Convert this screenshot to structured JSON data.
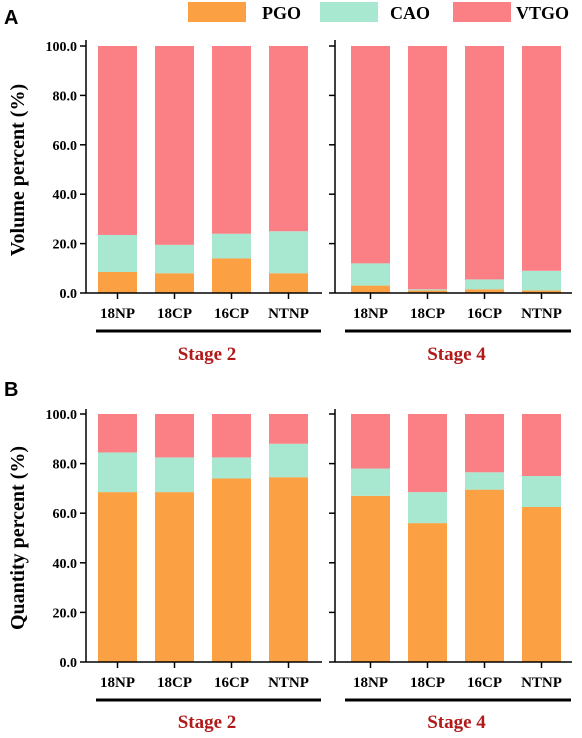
{
  "colors": {
    "pgo": "#FBA043",
    "cao": "#A8E8D1",
    "vtgo": "#FB8085",
    "stage_label": "#B01A1A",
    "axis": "#000000"
  },
  "legend": [
    {
      "key": "pgo",
      "label": "PGO"
    },
    {
      "key": "cao",
      "label": "CAO"
    },
    {
      "key": "vtgo",
      "label": "VTGO"
    }
  ],
  "chart_data": [
    {
      "panel": "A",
      "type": "bar",
      "stacked": true,
      "ylabel": "Volume percent (%)",
      "ylim": [
        0,
        100
      ],
      "yticks": [
        "0.0",
        "20.0",
        "40.0",
        "60.0",
        "80.0",
        "100.0"
      ],
      "groups": [
        {
          "label": "Stage 2",
          "categories": [
            "18NP",
            "18CP",
            "16CP",
            "NTNP"
          ],
          "series": [
            {
              "name": "PGO",
              "values": [
                8.5,
                8.0,
                14.0,
                8.0
              ]
            },
            {
              "name": "CAO",
              "values": [
                15.0,
                11.5,
                10.0,
                17.0
              ]
            },
            {
              "name": "VTGO",
              "values": [
                76.5,
                80.5,
                76.0,
                75.0
              ]
            }
          ]
        },
        {
          "label": "Stage 4",
          "categories": [
            "18NP",
            "18CP",
            "16CP",
            "NTNP"
          ],
          "series": [
            {
              "name": "PGO",
              "values": [
                3.0,
                1.0,
                1.5,
                1.0
              ]
            },
            {
              "name": "CAO",
              "values": [
                9.0,
                0.5,
                4.0,
                8.0
              ]
            },
            {
              "name": "VTGO",
              "values": [
                88.0,
                98.5,
                94.5,
                91.0
              ]
            }
          ]
        }
      ]
    },
    {
      "panel": "B",
      "type": "bar",
      "stacked": true,
      "ylabel": "Quantity percent (%)",
      "ylim": [
        0,
        100
      ],
      "yticks": [
        "0.0",
        "20.0",
        "40.0",
        "60.0",
        "80.0",
        "100.0"
      ],
      "groups": [
        {
          "label": "Stage 2",
          "categories": [
            "18NP",
            "18CP",
            "16CP",
            "NTNP"
          ],
          "series": [
            {
              "name": "PGO",
              "values": [
                68.5,
                68.5,
                74.0,
                74.5
              ]
            },
            {
              "name": "CAO",
              "values": [
                16.0,
                14.0,
                8.5,
                13.5
              ]
            },
            {
              "name": "VTGO",
              "values": [
                15.5,
                17.5,
                17.5,
                12.0
              ]
            }
          ]
        },
        {
          "label": "Stage 4",
          "categories": [
            "18NP",
            "18CP",
            "16CP",
            "NTNP"
          ],
          "series": [
            {
              "name": "PGO",
              "values": [
                67.0,
                56.0,
                69.5,
                62.5
              ]
            },
            {
              "name": "CAO",
              "values": [
                11.0,
                12.5,
                7.0,
                12.5
              ]
            },
            {
              "name": "VTGO",
              "values": [
                22.0,
                31.5,
                23.5,
                25.0
              ]
            }
          ]
        }
      ]
    }
  ]
}
